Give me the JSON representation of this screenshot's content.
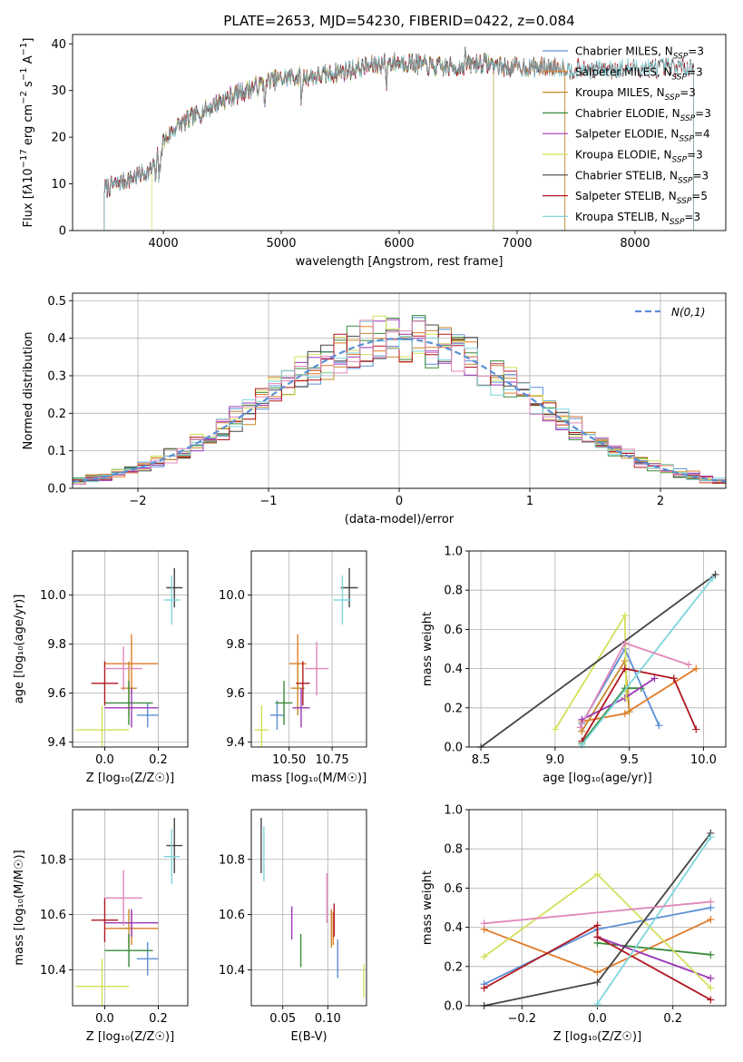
{
  "colors": {
    "Chabrier MILES": "#5b8fd6",
    "Salpeter MILES": "#e07b28",
    "Kroupa MILES": "#c88a2a",
    "Chabrier ELODIE": "#3a8a3a",
    "Salpeter ELODIE": "#9b36b7",
    "Kroupa ELODIE": "#d4e05a",
    "Chabrier STELIB": "#444444",
    "Salpeter STELIB": "#b0171f",
    "Kroupa STELIB": "#7fd6dc",
    "pink": "#e087b8",
    "normal": "#5b8fd6"
  },
  "chart_data": [
    {
      "id": "spectrum",
      "type": "line",
      "title": "PLATE=2653, MJD=54230, FIBERID=0422, z=0.084",
      "xlabel": "wavelength [Angstrom, rest frame]",
      "ylabel_html": "Flux [f<tspan font-style='italic'>λ</tspan>10<tspan dy='-6' font-size='10'>−17</tspan><tspan dy='6'> erg cm</tspan><tspan dy='-6' font-size='10'>−2</tspan><tspan dy='6'> s</tspan><tspan dy='-6' font-size='10'>−1</tspan><tspan dy='6'> A</tspan><tspan dy='-6' font-size='10'>−1</tspan><tspan dy='6'>]</tspan>",
      "xlim": [
        3230,
        8770
      ],
      "ylim": [
        0,
        42
      ],
      "xticks": [
        "4000",
        "5000",
        "6000",
        "7000",
        "8000"
      ],
      "yticks": [
        "0",
        "10",
        "20",
        "30",
        "40"
      ],
      "legend_position": "right",
      "legend": [
        {
          "key": "Chabrier MILES",
          "label": "Chabrier MILES, N",
          "sub": "SSP",
          "n": "=3"
        },
        {
          "key": "Salpeter MILES",
          "label": "Salpeter MILES, N",
          "sub": "SSP",
          "n": "=3"
        },
        {
          "key": "Kroupa MILES",
          "label": "Kroupa MILES, N",
          "sub": "SSP",
          "n": "=3"
        },
        {
          "key": "Chabrier ELODIE",
          "label": "Chabrier ELODIE, N",
          "sub": "SSP",
          "n": "=3"
        },
        {
          "key": "Salpeter ELODIE",
          "label": "Salpeter ELODIE, N",
          "sub": "SSP",
          "n": "=4"
        },
        {
          "key": "Kroupa ELODIE",
          "label": "Kroupa ELODIE, N",
          "sub": "SSP",
          "n": "=3"
        },
        {
          "key": "Chabrier STELIB",
          "label": "Chabrier STELIB, N",
          "sub": "SSP",
          "n": "=3"
        },
        {
          "key": "Salpeter STELIB",
          "label": "Salpeter STELIB, N",
          "sub": "SSP",
          "n": "=5"
        },
        {
          "key": "Kroupa STELIB",
          "label": "Kroupa STELIB, N",
          "sub": "SSP",
          "n": "=3"
        }
      ],
      "continuum": {
        "x": [
          3500,
          3600,
          3700,
          3800,
          3900,
          4000,
          4100,
          4300,
          4500,
          4700,
          4900,
          5100,
          5300,
          5500,
          5700,
          5900,
          6100,
          6300,
          6500,
          6700,
          6900,
          7100,
          7300,
          7420
        ],
        "y": [
          9,
          10,
          11,
          12,
          13,
          19,
          22,
          25,
          28,
          30,
          32,
          33,
          33,
          34,
          35,
          36,
          36,
          35,
          35,
          36,
          35,
          35,
          35,
          35
        ]
      },
      "model_ranges": [
        {
          "key": "Chabrier MILES",
          "x": [
            3500,
            7410
          ]
        },
        {
          "key": "Salpeter MILES",
          "x": [
            3500,
            7410
          ]
        },
        {
          "key": "Kroupa MILES",
          "x": [
            3500,
            7410
          ]
        },
        {
          "key": "Chabrier ELODIE",
          "x": [
            3500,
            6800
          ]
        },
        {
          "key": "Salpeter ELODIE",
          "x": [
            3500,
            6800
          ]
        },
        {
          "key": "Kroupa ELODIE",
          "x": [
            3900,
            6800
          ]
        },
        {
          "key": "Chabrier STELIB",
          "x": [
            3500,
            8500
          ]
        },
        {
          "key": "Salpeter STELIB",
          "x": [
            3500,
            8500
          ]
        },
        {
          "key": "Kroupa STELIB",
          "x": [
            3500,
            8500
          ]
        }
      ]
    },
    {
      "id": "residuals",
      "type": "step",
      "xlabel": "(data-model)/error",
      "ylabel": "Normed distribution",
      "xlim": [
        -2.5,
        2.5
      ],
      "ylim": [
        0,
        0.52
      ],
      "xticks": [
        "−2",
        "−1",
        "0",
        "1",
        "2"
      ],
      "yticks": [
        "0.0",
        "0.1",
        "0.2",
        "0.3",
        "0.4",
        "0.5"
      ],
      "bin_width": 0.1,
      "legend_position": "top-right",
      "legend_label": "N(0,1)"
    },
    {
      "id": "age-vs-Z",
      "type": "errorbar",
      "xlabel": "Z [log₁₀(Z/Z☉)]",
      "ylabel": "age [log₁₀(age/yr)]",
      "xlim": [
        -0.12,
        0.31
      ],
      "ylim": [
        9.38,
        10.18
      ],
      "xticks": [
        "0.0",
        "0.2"
      ],
      "yticks": [
        "9.4",
        "9.6",
        "9.8",
        "10.0"
      ],
      "points": [
        {
          "key": "Chabrier MILES",
          "x": 0.16,
          "y": 9.51,
          "xe": 0.04,
          "ye": 0.05
        },
        {
          "key": "Salpeter MILES",
          "x": 0.1,
          "y": 9.72,
          "xe": 0.1,
          "ye": 0.12
        },
        {
          "key": "Kroupa MILES",
          "x": 0.09,
          "y": 9.62,
          "xe": 0.03,
          "ye": 0.11
        },
        {
          "key": "Chabrier ELODIE",
          "x": 0.09,
          "y": 9.56,
          "xe": 0.09,
          "ye": 0.09
        },
        {
          "key": "Salpeter ELODIE",
          "x": 0.1,
          "y": 9.54,
          "xe": 0.1,
          "ye": 0.08
        },
        {
          "key": "Kroupa ELODIE",
          "x": -0.01,
          "y": 9.45,
          "xe": 0.1,
          "ye": 0.1
        },
        {
          "key": "Chabrier STELIB",
          "x": 0.26,
          "y": 10.03,
          "xe": 0.03,
          "ye": 0.08
        },
        {
          "key": "Salpeter STELIB",
          "x": 0.0,
          "y": 9.64,
          "xe": 0.05,
          "ye": 0.09
        },
        {
          "key": "Kroupa STELIB",
          "x": 0.25,
          "y": 9.98,
          "xe": 0.03,
          "ye": 0.1
        },
        {
          "key": "pink",
          "x": 0.07,
          "y": 9.7,
          "xe": 0.07,
          "ye": 0.09
        }
      ]
    },
    {
      "id": "age-vs-mass",
      "type": "errorbar",
      "xlabel": "mass [log₁₀(M/M☉)]",
      "ylabel": "",
      "xlim": [
        10.28,
        10.95
      ],
      "ylim": [
        9.38,
        10.18
      ],
      "xticks": [
        "10.50",
        "10.75"
      ],
      "yticks": [
        "9.4",
        "9.6",
        "9.8",
        "10.0"
      ],
      "points": [
        {
          "key": "Chabrier MILES",
          "x": 10.43,
          "y": 9.51,
          "xe": 0.04,
          "ye": 0.06
        },
        {
          "key": "Salpeter MILES",
          "x": 10.55,
          "y": 9.72,
          "xe": 0.05,
          "ye": 0.12
        },
        {
          "key": "Kroupa MILES",
          "x": 10.55,
          "y": 9.62,
          "xe": 0.04,
          "ye": 0.11
        },
        {
          "key": "Chabrier ELODIE",
          "x": 10.47,
          "y": 9.56,
          "xe": 0.05,
          "ye": 0.09
        },
        {
          "key": "Salpeter ELODIE",
          "x": 10.57,
          "y": 9.54,
          "xe": 0.05,
          "ye": 0.08
        },
        {
          "key": "Kroupa ELODIE",
          "x": 10.34,
          "y": 9.45,
          "xe": 0.04,
          "ye": 0.1
        },
        {
          "key": "Chabrier STELIB",
          "x": 10.85,
          "y": 10.03,
          "xe": 0.05,
          "ye": 0.08
        },
        {
          "key": "Salpeter STELIB",
          "x": 10.58,
          "y": 9.64,
          "xe": 0.04,
          "ye": 0.09
        },
        {
          "key": "Kroupa STELIB",
          "x": 10.81,
          "y": 9.98,
          "xe": 0.05,
          "ye": 0.1
        },
        {
          "key": "pink",
          "x": 10.66,
          "y": 9.7,
          "xe": 0.07,
          "ye": 0.11
        }
      ]
    },
    {
      "id": "weight-vs-age",
      "type": "line",
      "xlabel": "age [log₁₀(age/yr)]",
      "ylabel": "mass weight",
      "xlim": [
        8.42,
        10.15
      ],
      "ylim": [
        0,
        1
      ],
      "xticks": [
        "8.5",
        "9.0",
        "9.5",
        "10.0"
      ],
      "yticks": [
        "0.0",
        "0.2",
        "0.4",
        "0.6",
        "0.8",
        "1.0"
      ],
      "series": [
        {
          "key": "Chabrier MILES",
          "x": [
            9.18,
            9.47,
            9.7
          ],
          "y": [
            0.12,
            0.5,
            0.11
          ]
        },
        {
          "key": "Salpeter MILES",
          "x": [
            9.18,
            9.47,
            9.95
          ],
          "y": [
            0.13,
            0.17,
            0.4
          ]
        },
        {
          "key": "Kroupa MILES",
          "x": [
            9.18,
            9.47,
            9.5
          ],
          "y": [
            0.08,
            0.44,
            0.18
          ]
        },
        {
          "key": "Chabrier ELODIE",
          "x": [
            9.18,
            9.47,
            9.58
          ],
          "y": [
            0.02,
            0.3,
            0.3
          ]
        },
        {
          "key": "Salpeter ELODIE",
          "x": [
            9.18,
            9.47,
            9.67
          ],
          "y": [
            0.14,
            0.25,
            0.35
          ]
        },
        {
          "key": "Kroupa ELODIE",
          "x": [
            9.0,
            9.47,
            9.48
          ],
          "y": [
            0.09,
            0.67,
            0.25
          ]
        },
        {
          "key": "Chabrier STELIB",
          "x": [
            8.5,
            10.08
          ],
          "y": [
            0.0,
            0.88
          ]
        },
        {
          "key": "Salpeter STELIB",
          "x": [
            9.18,
            9.47,
            9.8,
            9.95
          ],
          "y": [
            0.03,
            0.4,
            0.35,
            0.09
          ]
        },
        {
          "key": "Kroupa STELIB",
          "x": [
            9.18,
            10.06
          ],
          "y": [
            0.01,
            0.86
          ]
        },
        {
          "key": "pink",
          "x": [
            9.17,
            9.47,
            9.9
          ],
          "y": [
            0.1,
            0.53,
            0.42
          ]
        }
      ]
    },
    {
      "id": "mass-vs-Z",
      "type": "errorbar",
      "xlabel": "Z [log₁₀(Z/Z☉)]",
      "ylabel": "mass [log₁₀(M/M☉)]",
      "xlim": [
        -0.12,
        0.31
      ],
      "ylim": [
        10.27,
        10.98
      ],
      "xticks": [
        "0.0",
        "0.2"
      ],
      "yticks": [
        "10.4",
        "10.6",
        "10.8"
      ],
      "points": [
        {
          "key": "Chabrier MILES",
          "x": 0.16,
          "y": 10.44,
          "xe": 0.04,
          "ye": 0.06
        },
        {
          "key": "Salpeter MILES",
          "x": 0.1,
          "y": 10.55,
          "xe": 0.1,
          "ye": 0.06
        },
        {
          "key": "Kroupa MILES",
          "x": 0.09,
          "y": 10.55,
          "xe": 0.03,
          "ye": 0.07
        },
        {
          "key": "Chabrier ELODIE",
          "x": 0.09,
          "y": 10.47,
          "xe": 0.09,
          "ye": 0.06
        },
        {
          "key": "Salpeter ELODIE",
          "x": 0.1,
          "y": 10.57,
          "xe": 0.1,
          "ye": 0.05
        },
        {
          "key": "Kroupa ELODIE",
          "x": -0.01,
          "y": 10.34,
          "xe": 0.1,
          "ye": 0.1
        },
        {
          "key": "Chabrier STELIB",
          "x": 0.26,
          "y": 10.85,
          "xe": 0.03,
          "ye": 0.1
        },
        {
          "key": "Salpeter STELIB",
          "x": 0.0,
          "y": 10.58,
          "xe": 0.05,
          "ye": 0.08
        },
        {
          "key": "Kroupa STELIB",
          "x": 0.25,
          "y": 10.81,
          "xe": 0.03,
          "ye": 0.1
        },
        {
          "key": "pink",
          "x": 0.07,
          "y": 10.66,
          "xe": 0.07,
          "ye": 0.1
        }
      ]
    },
    {
      "id": "mass-vs-ebv",
      "type": "errorbar",
      "xlabel": "E(B-V)",
      "ylabel": "",
      "xlim": [
        0.015,
        0.143
      ],
      "ylim": [
        10.27,
        10.98
      ],
      "xticks": [
        "0.05",
        "0.10"
      ],
      "yticks": [
        "10.4",
        "10.6",
        "10.8"
      ],
      "points": [
        {
          "key": "Chabrier MILES",
          "x": 0.111,
          "y": 10.44,
          "xe": 0,
          "ye": 0.07
        },
        {
          "key": "Salpeter MILES",
          "x": 0.106,
          "y": 10.55,
          "xe": 0,
          "ye": 0.06
        },
        {
          "key": "Kroupa MILES",
          "x": 0.104,
          "y": 10.55,
          "xe": 0,
          "ye": 0.07
        },
        {
          "key": "Chabrier ELODIE",
          "x": 0.07,
          "y": 10.47,
          "xe": 0,
          "ye": 0.06
        },
        {
          "key": "Salpeter ELODIE",
          "x": 0.06,
          "y": 10.57,
          "xe": 0,
          "ye": 0.06
        },
        {
          "key": "Kroupa ELODIE",
          "x": 0.14,
          "y": 10.36,
          "xe": 0,
          "ye": 0.06
        },
        {
          "key": "Chabrier STELIB",
          "x": 0.026,
          "y": 10.85,
          "xe": 0,
          "ye": 0.1
        },
        {
          "key": "Salpeter STELIB",
          "x": 0.107,
          "y": 10.58,
          "xe": 0,
          "ye": 0.06
        },
        {
          "key": "Kroupa STELIB",
          "x": 0.029,
          "y": 10.82,
          "xe": 0,
          "ye": 0.1
        },
        {
          "key": "pink",
          "x": 0.099,
          "y": 10.66,
          "xe": 0,
          "ye": 0.09
        }
      ]
    },
    {
      "id": "weight-vs-Z",
      "type": "line",
      "xlabel": "Z [log₁₀(Z/Z☉)]",
      "ylabel": "mass weight",
      "xlim": [
        -0.34,
        0.34
      ],
      "ylim": [
        0,
        1
      ],
      "xticks": [
        "−0.2",
        "0.0",
        "0.2"
      ],
      "yticks": [
        "0.0",
        "0.2",
        "0.4",
        "0.6",
        "0.8",
        "1.0"
      ],
      "series": [
        {
          "key": "Chabrier MILES",
          "x": [
            -0.3,
            0.0,
            0.3
          ],
          "y": [
            0.11,
            0.39,
            0.5
          ]
        },
        {
          "key": "Salpeter MILES",
          "x": [
            -0.3,
            0.0,
            0.3
          ],
          "y": [
            0.39,
            0.17,
            0.44
          ]
        },
        {
          "key": "Chabrier ELODIE",
          "x": [
            0.0,
            0.3
          ],
          "y": [
            0.32,
            0.26
          ]
        },
        {
          "key": "Salpeter ELODIE",
          "x": [
            0.0,
            0.3
          ],
          "y": [
            0.35,
            0.14
          ]
        },
        {
          "key": "Kroupa ELODIE",
          "x": [
            -0.3,
            0.0,
            0.3
          ],
          "y": [
            0.25,
            0.67,
            0.09
          ]
        },
        {
          "key": "Chabrier STELIB",
          "x": [
            -0.3,
            0.0,
            0.3
          ],
          "y": [
            0.0,
            0.12,
            0.88
          ]
        },
        {
          "key": "Salpeter STELIB",
          "x": [
            -0.3,
            0.0,
            0.0,
            0.3
          ],
          "y": [
            0.09,
            0.41,
            0.35,
            0.03
          ]
        },
        {
          "key": "Kroupa STELIB",
          "x": [
            0.0,
            0.3
          ],
          "y": [
            0.01,
            0.86
          ]
        },
        {
          "key": "pink",
          "x": [
            -0.3,
            0.3
          ],
          "y": [
            0.42,
            0.53
          ]
        }
      ]
    }
  ]
}
